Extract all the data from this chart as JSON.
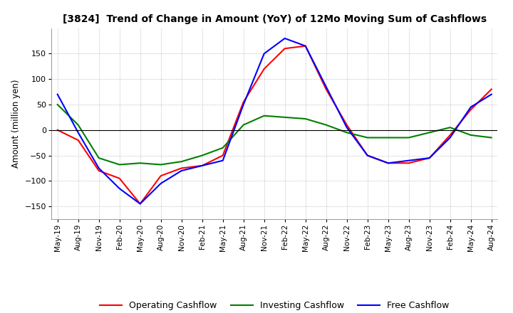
{
  "title": "[3824]  Trend of Change in Amount (YoY) of 12Mo Moving Sum of Cashflows",
  "ylabel": "Amount (million yen)",
  "ylim": [
    -175,
    200
  ],
  "yticks": [
    -150,
    -100,
    -50,
    0,
    50,
    100,
    150
  ],
  "x_labels": [
    "May-19",
    "Aug-19",
    "Nov-19",
    "Feb-20",
    "May-20",
    "Aug-20",
    "Nov-20",
    "Feb-21",
    "May-21",
    "Aug-21",
    "Nov-21",
    "Feb-22",
    "May-22",
    "Aug-22",
    "Nov-22",
    "Feb-23",
    "May-23",
    "Aug-23",
    "Nov-23",
    "Feb-24",
    "May-24",
    "Aug-24"
  ],
  "operating_cashflow": [
    0,
    -20,
    -80,
    -95,
    -145,
    -90,
    -75,
    -70,
    -50,
    55,
    120,
    160,
    165,
    80,
    10,
    -50,
    -65,
    -65,
    -55,
    -10,
    40,
    80
  ],
  "investing_cashflow": [
    50,
    10,
    -55,
    -68,
    -65,
    -68,
    -62,
    -50,
    -35,
    10,
    28,
    25,
    22,
    10,
    -5,
    -15,
    -15,
    -15,
    -5,
    5,
    -10,
    -15
  ],
  "free_cashflow": [
    70,
    -5,
    -75,
    -115,
    -145,
    -105,
    -80,
    -70,
    -60,
    50,
    150,
    180,
    165,
    85,
    5,
    -50,
    -65,
    -60,
    -55,
    -15,
    45,
    70
  ],
  "operating_color": "#ff0000",
  "investing_color": "#008000",
  "free_color": "#0000ff",
  "background_color": "#ffffff",
  "grid_color": "#aaaaaa"
}
